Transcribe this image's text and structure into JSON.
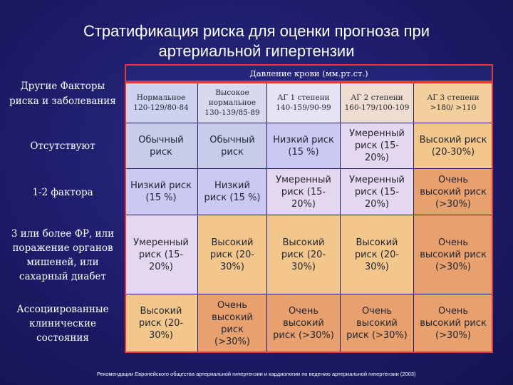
{
  "title": {
    "line1": "Стратификация риска для оценки прогноза при",
    "line2": "артериальной гипертензии"
  },
  "corner_label": "Другие Факторы риска и заболевания",
  "pressure_header": "Давление крови (мм.рт.ст.)",
  "columns": [
    {
      "name": "Нормальное",
      "range": "120-129/80-84"
    },
    {
      "name": "Высокое нормальное",
      "range": "130-139/85-89"
    },
    {
      "name": "АГ 1 степени",
      "range": "140-159/90-99"
    },
    {
      "name": "АГ 2 степени",
      "range": "160-179/100-109"
    },
    {
      "name": "АГ 3 степени",
      "range": ">180/ >110"
    }
  ],
  "rows": [
    {
      "label": "Отсутствуют",
      "cells": [
        "Обычный риск",
        "Обычный риск",
        "Низкий риск (15 %)",
        "Умеренный риск (15-20%)",
        "Высокий риск (20-30%)"
      ]
    },
    {
      "label": "1-2 фактора",
      "cells": [
        "Низкий риск (15 %)",
        "Низкий риск (15 %)",
        "Умеренный риск (15-20%)",
        "Умеренный риск (15-20%)",
        "Очень высокий риск (>30%)"
      ]
    },
    {
      "label": "3 или более ФР, или поражение органов мишеней, или сахарный диабет",
      "cells": [
        "Умеренный риск (15-20%)",
        "Высокий риск (20-30%)",
        "Высокий риск (20-30%)",
        "Высокий риск (20-30%)",
        "Очень высокий риск (>30%)"
      ]
    },
    {
      "label": "Ассоциированные клинические состояния",
      "cells": [
        "Высокий риск (20-30%)",
        "Очень высокий риск (>30%)",
        "Очень высокий риск (>30%)",
        "Очень высокий риск (>30%)",
        "Очень высокий риск (>30%)"
      ]
    }
  ],
  "colors": {
    "normal_risk": "#c8cbea",
    "low_risk": "#cbc8f2",
    "moderate_risk": "#e4d8ef",
    "high_risk": "#f3c78c",
    "very_high_risk": "#e9a06f",
    "border": "#e53935",
    "background": "#1c1c68"
  },
  "footnote": "Рекомендации Европейского общества артериальной гипертензии и кардиологии по ведению артериальной гипертензии (2003)"
}
